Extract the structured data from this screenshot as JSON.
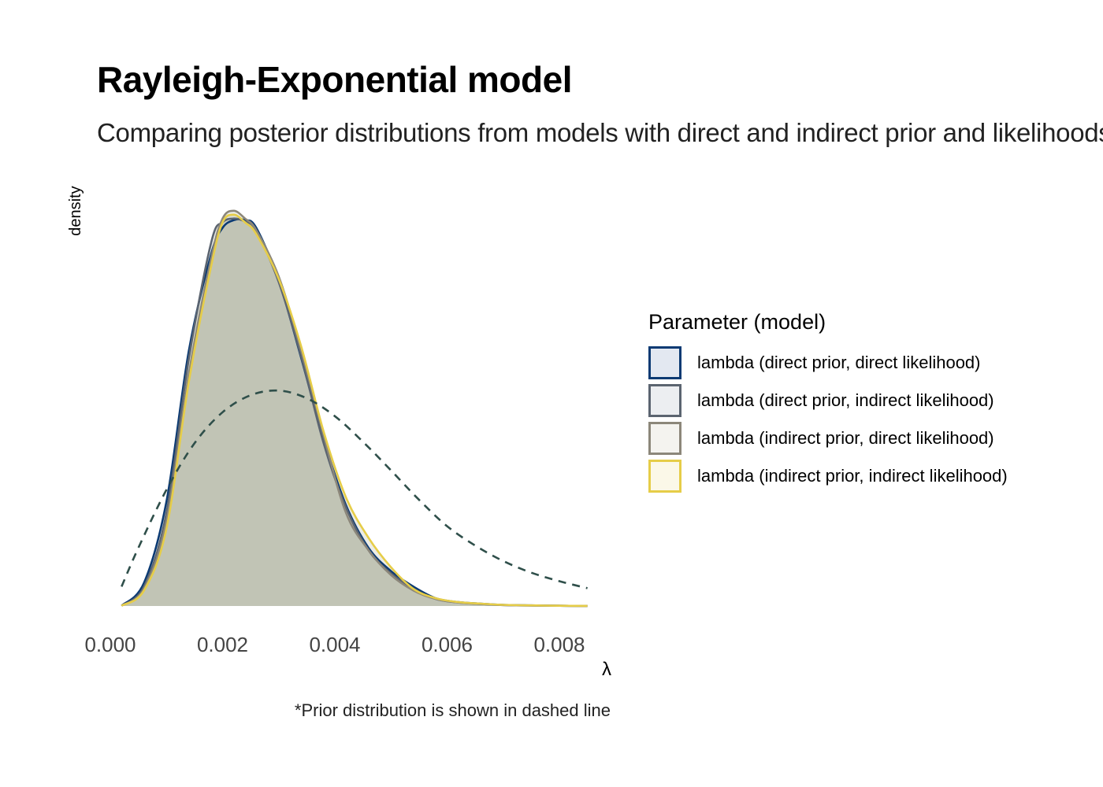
{
  "chart_data": {
    "type": "area",
    "title": "Rayleigh-Exponential model",
    "subtitle": "Comparing posterior distributions from models with direct and indirect prior and likelihoods",
    "xlabel": "λ",
    "ylabel": "density",
    "xlim": [
      0.0,
      0.0085
    ],
    "x_ticks": [
      "0.000",
      "0.002",
      "0.004",
      "0.006",
      "0.008"
    ],
    "caption": "*Prior distribution is shown in dashed line",
    "legend": {
      "title": "Parameter (model)",
      "position": "right"
    },
    "grid": false,
    "x": [
      0.0002,
      0.0006,
      0.001,
      0.0014,
      0.0018,
      0.002,
      0.0022,
      0.0024,
      0.0026,
      0.003,
      0.0034,
      0.0038,
      0.0042,
      0.0046,
      0.005,
      0.0054,
      0.0058,
      0.0062,
      0.0066,
      0.007,
      0.0075,
      0.008,
      0.0085
    ],
    "series": [
      {
        "name": "lambda (direct prior, direct likelihood)",
        "color": "#0b3a73",
        "fill": "#e3e8f1",
        "values": [
          0.3,
          30,
          135,
          330,
          455,
          488,
          498,
          498,
          488,
          420,
          320,
          215,
          130,
          75,
          45,
          25,
          10,
          5,
          3,
          1.5,
          0.8,
          0.3,
          0.1
        ]
      },
      {
        "name": "lambda (direct prior, indirect likelihood)",
        "color": "#5b6470",
        "fill": "#eceef1",
        "values": [
          0.3,
          25,
          120,
          320,
          470,
          495,
          500,
          496,
          484,
          418,
          322,
          210,
          127,
          72,
          42,
          22,
          9,
          4.5,
          2.5,
          1.2,
          0.6,
          0.3,
          0.1
        ]
      },
      {
        "name": "lambda (indirect prior, direct likelihood)",
        "color": "#8c877a",
        "fill": "#f4f3ef",
        "values": [
          0.3,
          22,
          110,
          300,
          450,
          500,
          510,
          500,
          485,
          425,
          330,
          220,
          120,
          72,
          40,
          20,
          9,
          4.5,
          2.5,
          1.2,
          0.6,
          0.3,
          0.1
        ]
      },
      {
        "name": "lambda (indirect prior, indirect likelihood)",
        "color": "#e6cd48",
        "fill": "#fbf8e8",
        "values": [
          0.3,
          20,
          100,
          290,
          440,
          495,
          505,
          495,
          480,
          422,
          335,
          225,
          140,
          88,
          50,
          22,
          10,
          5,
          3,
          1.5,
          0.8,
          0.3,
          0.1
        ]
      }
    ],
    "prior": {
      "style": "dashed",
      "color": "#2f4f4a",
      "x": [
        0.0002,
        0.0005,
        0.001,
        0.0015,
        0.002,
        0.0025,
        0.003,
        0.0035,
        0.004,
        0.0045,
        0.005,
        0.0055,
        0.006,
        0.0065,
        0.007,
        0.0075,
        0.008,
        0.0085
      ],
      "values": [
        25,
        75,
        150,
        210,
        250,
        272,
        278,
        268,
        245,
        212,
        175,
        137,
        103,
        78,
        58,
        43,
        32,
        23
      ]
    },
    "ylim": [
      0,
      520
    ]
  }
}
